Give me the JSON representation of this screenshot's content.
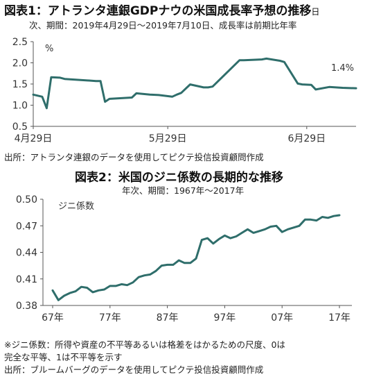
{
  "chart_data": [
    {
      "type": "line",
      "title": "図表1：アトランタ連銀GDPナウの米国成長率予想の推移",
      "title_suffix": "日",
      "subtitle": "次、期間：2019年4月29日～2019年7月10日、成長率は前期比年率",
      "unit_label": "%",
      "ylim": [
        0.5,
        2.5
      ],
      "y_ticks": [
        "2.5",
        "2.0",
        "1.5",
        "1.0",
        "0.5"
      ],
      "x_ticks": [
        "4月29日",
        "5月29日",
        "6月29日"
      ],
      "x_tick_days": [
        0,
        30,
        61
      ],
      "x_range_days": [
        0,
        72
      ],
      "annotation": "1.4%",
      "color": "#2f6e6b",
      "series": [
        {
          "x": [
            0,
            2,
            3,
            4,
            6,
            7,
            14,
            15,
            16,
            17,
            22,
            23,
            26,
            28,
            31,
            32,
            33,
            35,
            38,
            39,
            40,
            46,
            47,
            51,
            52,
            55,
            56,
            59,
            60,
            62,
            63,
            66,
            69,
            72
          ],
          "values": [
            1.25,
            1.2,
            0.93,
            1.66,
            1.65,
            1.62,
            1.57,
            1.57,
            1.08,
            1.15,
            1.18,
            1.28,
            1.25,
            1.24,
            1.2,
            1.25,
            1.29,
            1.49,
            1.42,
            1.42,
            1.44,
            2.06,
            2.06,
            2.08,
            2.1,
            2.05,
            2.02,
            1.51,
            1.49,
            1.48,
            1.37,
            1.43,
            1.41,
            1.4
          ]
        }
      ],
      "source": "出所：アトランタ連銀のデータを使用してピクテ投信投資顧問作成"
    },
    {
      "type": "line",
      "title": "図表2：米国のジニ係数の長期的な推移",
      "subtitle": "年次、期間：1967年～2017年",
      "unit_label": "ジニ係数",
      "ylim": [
        0.38,
        0.5
      ],
      "y_ticks": [
        "0.50",
        "0.47",
        "0.44",
        "0.41",
        "0.38"
      ],
      "x_ticks": [
        "67年",
        "77年",
        "87年",
        "97年",
        "07年",
        "17年"
      ],
      "x_tick_years": [
        1967,
        1977,
        1987,
        1997,
        2007,
        2017
      ],
      "x_range": [
        1967,
        2017
      ],
      "color": "#2f6e6b",
      "series": [
        {
          "x": [
            1967,
            1968,
            1969,
            1970,
            1971,
            1972,
            1973,
            1974,
            1975,
            1976,
            1977,
            1978,
            1979,
            1980,
            1981,
            1982,
            1983,
            1984,
            1985,
            1986,
            1987,
            1988,
            1989,
            1990,
            1991,
            1992,
            1993,
            1994,
            1995,
            1996,
            1997,
            1998,
            1999,
            2000,
            2001,
            2002,
            2003,
            2004,
            2005,
            2006,
            2007,
            2008,
            2009,
            2010,
            2011,
            2012,
            2013,
            2014,
            2015,
            2016,
            2017
          ],
          "values": [
            0.397,
            0.386,
            0.391,
            0.394,
            0.396,
            0.401,
            0.4,
            0.395,
            0.397,
            0.398,
            0.402,
            0.402,
            0.404,
            0.403,
            0.406,
            0.412,
            0.414,
            0.415,
            0.419,
            0.425,
            0.426,
            0.426,
            0.431,
            0.428,
            0.428,
            0.433,
            0.454,
            0.456,
            0.45,
            0.455,
            0.459,
            0.456,
            0.458,
            0.462,
            0.466,
            0.462,
            0.464,
            0.466,
            0.469,
            0.47,
            0.463,
            0.466,
            0.468,
            0.47,
            0.477,
            0.477,
            0.476,
            0.48,
            0.479,
            0.481,
            0.482
          ]
        }
      ],
      "note_line1": "※ジニ係数：所得や資産の不平等あるいは格差をはかるための尺度、0は",
      "note_line2": "完全な平等、1は不平等を示す",
      "source": "出所：ブルームバーグのデータを使用してピクテ投信投資顧問作成"
    }
  ]
}
